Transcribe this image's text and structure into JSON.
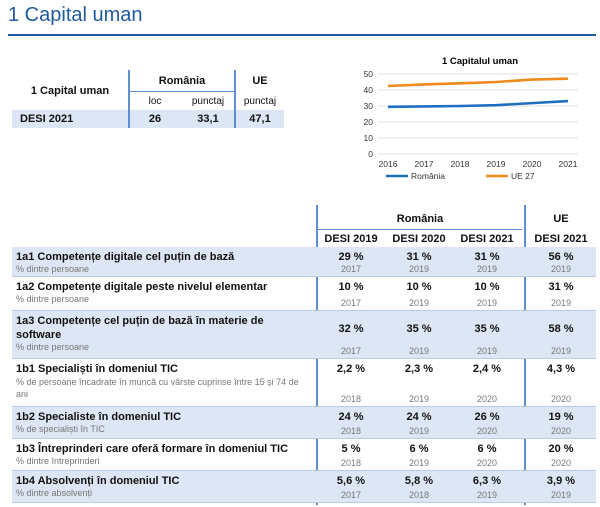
{
  "title": "1 Capital uman",
  "summary": {
    "label": "1 Capital uman",
    "romania": "România",
    "ue": "UE",
    "loc": "loc",
    "punctaj": "punctaj",
    "punctaj_ue": "punctaj",
    "row_label": "DESI 2021",
    "row_loc": "26",
    "row_ro": "33,1",
    "row_ue": "47,1"
  },
  "chart_data": {
    "type": "line",
    "title": "1 Capitalul uman",
    "x": [
      "2016",
      "2017",
      "2018",
      "2019",
      "2020",
      "2021"
    ],
    "ylim": [
      0,
      50
    ],
    "yticks": [
      "0",
      "10",
      "20",
      "30",
      "40",
      "50"
    ],
    "series": [
      {
        "name": "România",
        "values": [
          29.5,
          29.7,
          30.0,
          30.5,
          31.8,
          33.1
        ],
        "color": "#1f6fc0"
      },
      {
        "name": "UE 27",
        "values": [
          42.5,
          43.5,
          44.2,
          45.0,
          46.5,
          47.1
        ],
        "color": "#f08a1c"
      }
    ]
  },
  "table": {
    "group_ro": "România",
    "group_ue": "UE",
    "cols": [
      "DESI 2019",
      "DESI 2020",
      "DESI 2021",
      "DESI 2021"
    ],
    "rows": [
      {
        "label": "1a1 Competențe digitale cel puțin de bază",
        "sub": "% dintre persoane",
        "vals": [
          "29 %",
          "31 %",
          "31 %",
          "56 %"
        ],
        "years": [
          "2017",
          "2019",
          "2019",
          "2019"
        ]
      },
      {
        "label": "1a2 Competențe digitale peste nivelul elementar",
        "sub": "% dintre persoane",
        "vals": [
          "10 %",
          "10 %",
          "10 %",
          "31 %"
        ],
        "years": [
          "2017",
          "2019",
          "2019",
          "2019"
        ]
      },
      {
        "label": "1a3 Competențe cel puțin de bază în materie de software",
        "sub": "% dintre persoane",
        "vals": [
          "32 %",
          "35 %",
          "35 %",
          "58 %"
        ],
        "years": [
          "2017",
          "2019",
          "2019",
          "2019"
        ]
      },
      {
        "label": "1b1 Specialiști în domeniul TIC",
        "sub": "% de persoane încadrate în muncă cu vârste cuprinse între 15 și 74 de ani",
        "vals": [
          "2,2 %",
          "2,3 %",
          "2,4 %",
          "4,3 %"
        ],
        "years": [
          "2018",
          "2019",
          "2020",
          "2020"
        ]
      },
      {
        "label": "1b2 Specialiste în domeniul TIC",
        "sub": "% de specialiști în TIC",
        "vals": [
          "24 %",
          "24 %",
          "26 %",
          "19 %"
        ],
        "years": [
          "2018",
          "2019",
          "2020",
          "2020"
        ]
      },
      {
        "label": "1b3 Întreprinderi care oferă formare în domeniul TIC",
        "sub": "% dintre întreprinderi",
        "vals": [
          "5 %",
          "6 %",
          "6 %",
          "20 %"
        ],
        "years": [
          "2018",
          "2019",
          "2020",
          "2020"
        ]
      },
      {
        "label": "1b4 Absolvenți în domeniul TIC",
        "sub": "% dintre absolvenți",
        "vals": [
          "5,6 %",
          "5,8 %",
          "6,3 %",
          "3,9 %"
        ],
        "years": [
          "2017",
          "2018",
          "2019",
          "2019"
        ]
      }
    ]
  }
}
